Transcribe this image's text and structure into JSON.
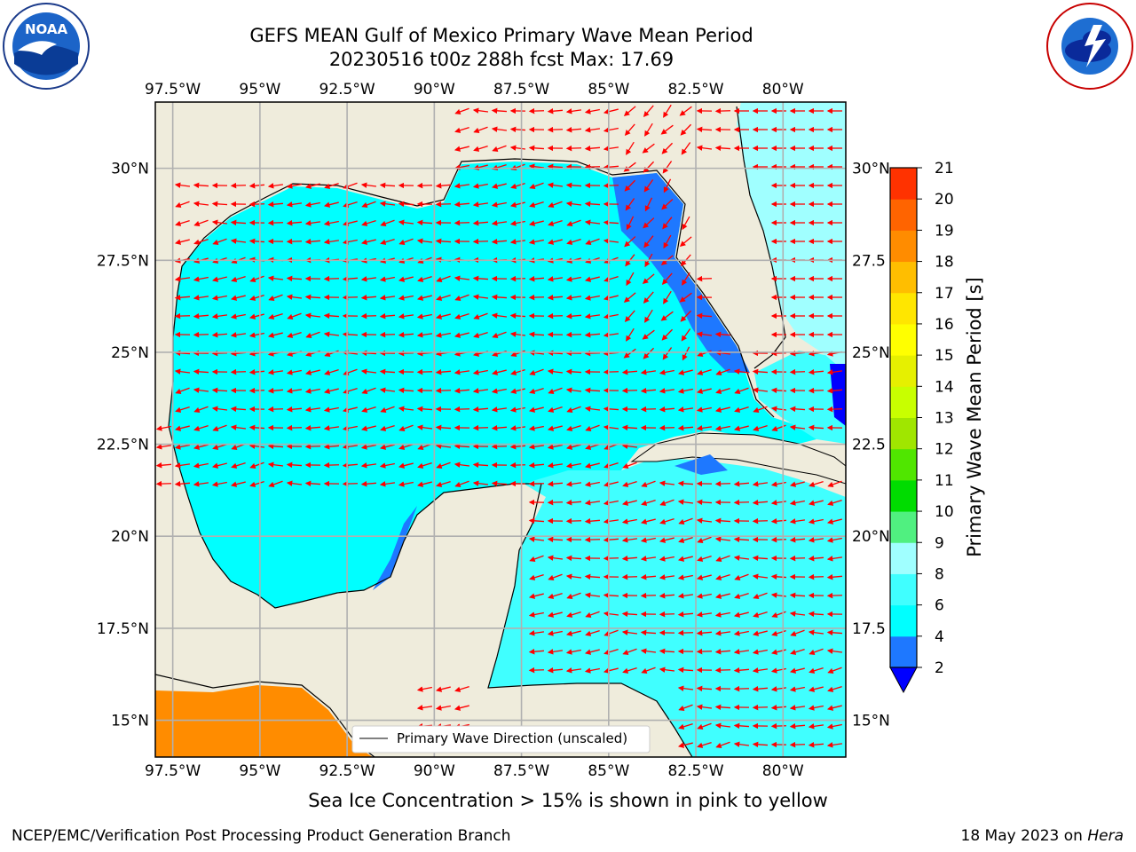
{
  "header": {
    "title_line1": "GEFS MEAN Gulf of Mexico Primary Wave Mean Period",
    "title_line2": "20230516 t00z 288h fcst   Max: 17.69"
  },
  "logos": {
    "left": "noaa-logo",
    "left_text": "NOAA",
    "right": "nws-logo"
  },
  "map": {
    "lon_ticks": [
      "97.5°W",
      "95°W",
      "92.5°W",
      "90°W",
      "87.5°W",
      "85°W",
      "82.5°W",
      "80°W"
    ],
    "lon_values": [
      -97.5,
      -95,
      -92.5,
      -90,
      -87.5,
      -85,
      -82.5,
      -80
    ],
    "lat_ticks_left": [
      "30°N",
      "27.5°N",
      "25°N",
      "22.5°N",
      "20°N",
      "17.5°N",
      "15°N"
    ],
    "lat_ticks_right": [
      "30°N",
      "27.5",
      "25°N",
      "22.5",
      "20°N",
      "17.5",
      "15°N"
    ],
    "lat_values": [
      30,
      27.5,
      25,
      22.5,
      20,
      17.5,
      15
    ],
    "lon_range": [
      -98,
      -78.2
    ],
    "lat_range": [
      14,
      31.8
    ],
    "legend_label": "Primary Wave Direction (unscaled)",
    "land_color": "#efecdc",
    "arrow_color": "#ff0000"
  },
  "colorbar": {
    "label": "Primary Wave Mean Period [s]",
    "ticks": [
      "2",
      "4",
      "6",
      "8",
      "9",
      "10",
      "11",
      "12",
      "13",
      "14",
      "15",
      "16",
      "17",
      "18",
      "19",
      "20",
      "21"
    ],
    "colors": [
      "#1e78ff",
      "#00ffff",
      "#40ffff",
      "#a0ffff",
      "#50f080",
      "#00dc00",
      "#50e600",
      "#a0e600",
      "#c8ff00",
      "#e6f000",
      "#ffff00",
      "#ffe600",
      "#ffbe00",
      "#ff8c00",
      "#ff6400",
      "#ff3200",
      "#ff0000"
    ],
    "under_color": "#0000ff"
  },
  "subcaption": "Sea Ice Concentration > 15% is shown in pink to yellow",
  "footer": {
    "left": "NCEP/EMC/Verification Post Processing Product Generation Branch",
    "right_date": "18 May 2023 on",
    "right_host": "Hera"
  }
}
